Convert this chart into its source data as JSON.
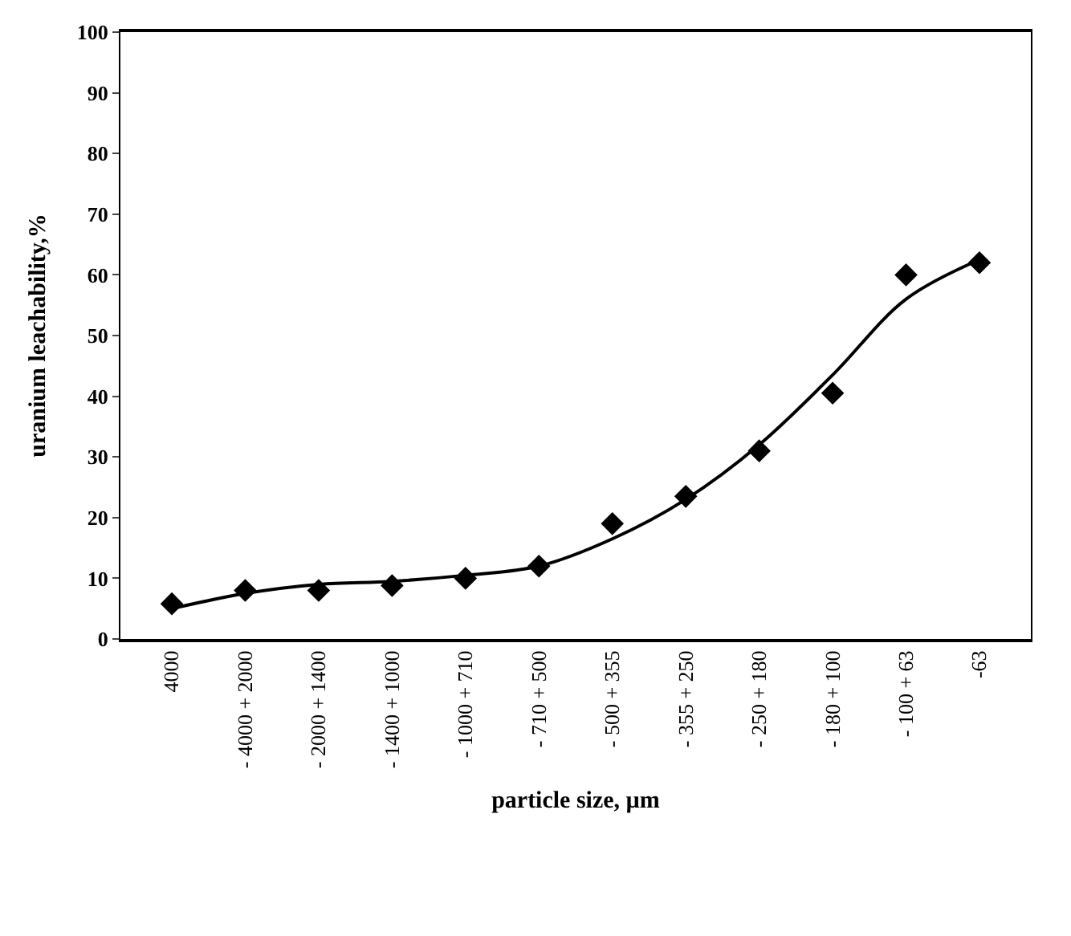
{
  "chart_data": {
    "type": "scatter",
    "xlabel": "particle size, µm",
    "ylabel": "uranium leachability,%",
    "categories": [
      "4000",
      "- 4000 + 2000",
      "- 2000 + 1400",
      "- 1400 + 1000",
      "- 1000 + 710",
      "- 710 + 500",
      "- 500 + 355",
      "- 355 + 250",
      "- 250 + 180",
      "- 180 + 100",
      "- 100 + 63",
      "-63"
    ],
    "series": [
      {
        "color": "#000000",
        "marker": "diamond",
        "values": [
          5.8,
          8,
          8,
          8.8,
          10,
          12,
          19,
          23.5,
          31,
          40.5,
          60,
          62
        ]
      },
      {
        "type": "line",
        "color": "#000000",
        "marker": "none",
        "line_style": "solid",
        "values": [
          5,
          7.5,
          9,
          9.5,
          10.5,
          12,
          16.5,
          23,
          32,
          43.5,
          56,
          62.5
        ]
      }
    ],
    "ylim": [
      0,
      100
    ],
    "yticks": [
      0,
      10,
      20,
      30,
      40,
      50,
      60,
      70,
      80,
      90,
      100
    ]
  }
}
